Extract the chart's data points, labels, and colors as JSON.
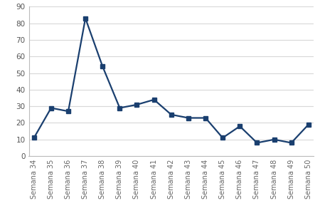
{
  "categories": [
    "Semana 34",
    "Semana 35",
    "Semana 36",
    "Semana 37",
    "Semana 38",
    "Semana 39",
    "Semana 40",
    "Semana 41",
    "Semana 42",
    "Semana 43",
    "Semana 44",
    "Semana 45",
    "Semana 46",
    "Semana 47",
    "Semana 48",
    "Semana 49",
    "Semana 50"
  ],
  "values": [
    11,
    29,
    27,
    83,
    54,
    29,
    31,
    34,
    25,
    23,
    23,
    11,
    18,
    8,
    10,
    8,
    19
  ],
  "line_color": "#1a3f6f",
  "marker": "s",
  "marker_size": 4,
  "ylim": [
    0,
    90
  ],
  "yticks": [
    0,
    10,
    20,
    30,
    40,
    50,
    60,
    70,
    80,
    90
  ],
  "background_color": "#ffffff",
  "plot_bg_color": "#ffffff",
  "grid_color": "#d8d8d8",
  "tick_label_fontsize": 7,
  "ytick_label_fontsize": 7.5,
  "line_width": 1.6
}
